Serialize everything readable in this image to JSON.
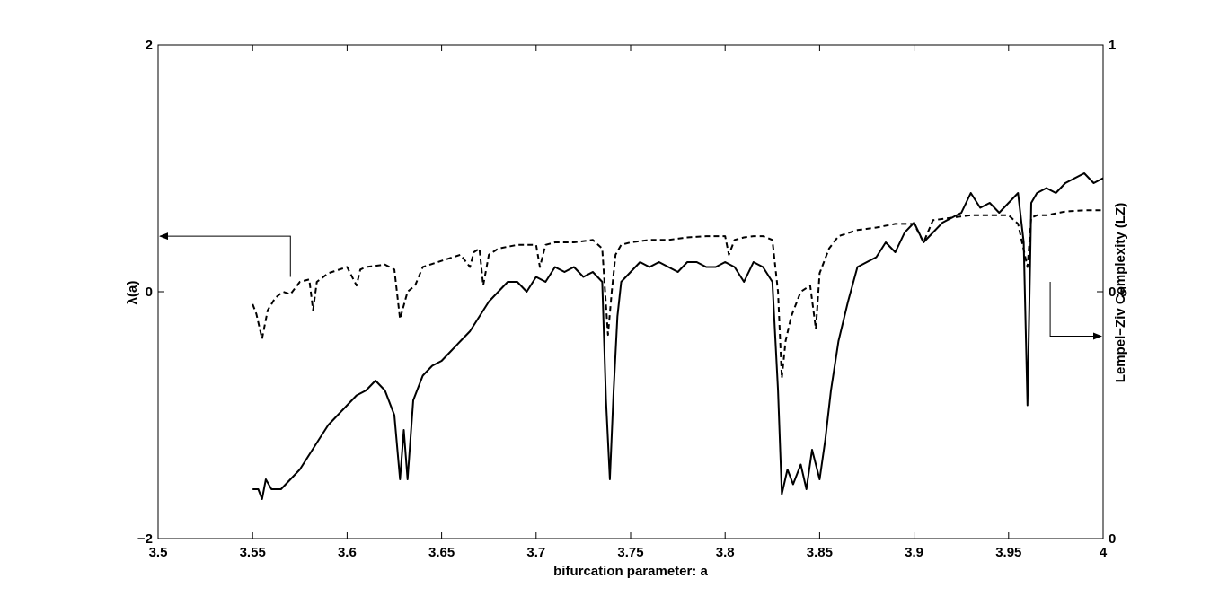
{
  "chart_data": {
    "type": "line",
    "xlabel": "bifurcation parameter: a",
    "ylabel_left": "λ(a)",
    "ylabel_right": "Lempel−Ziv Complexity (LZ)",
    "xlim": [
      3.5,
      4
    ],
    "ylim_left": [
      -2,
      2
    ],
    "ylim_right": [
      0,
      1
    ],
    "x_ticks": [
      3.5,
      3.55,
      3.6,
      3.65,
      3.7,
      3.75,
      3.8,
      3.85,
      3.9,
      3.95,
      4
    ],
    "x_tick_labels": [
      "3.5",
      "3.55",
      "3.6",
      "3.65",
      "3.7",
      "3.75",
      "3.8",
      "3.85",
      "3.9",
      "3.95",
      "4"
    ],
    "y_left_ticks": [
      -2,
      0,
      2
    ],
    "y_left_tick_labels": [
      "−2",
      "0",
      "2"
    ],
    "y_right_ticks": [
      0,
      0.5,
      1
    ],
    "y_right_tick_labels": [
      "0",
      "0.5",
      "1"
    ],
    "grid": false,
    "series": [
      {
        "axis": "left",
        "style": "dashed",
        "color": "#000000",
        "x": [
          3.55,
          3.552,
          3.555,
          3.558,
          3.562,
          3.566,
          3.57,
          3.575,
          3.58,
          3.582,
          3.584,
          3.59,
          3.6,
          3.605,
          3.607,
          3.61,
          3.62,
          3.625,
          3.628,
          3.632,
          3.636,
          3.64,
          3.65,
          3.66,
          3.665,
          3.667,
          3.67,
          3.672,
          3.675,
          3.68,
          3.69,
          3.7,
          3.702,
          3.705,
          3.71,
          3.72,
          3.73,
          3.735,
          3.738,
          3.74,
          3.742,
          3.745,
          3.75,
          3.76,
          3.77,
          3.78,
          3.79,
          3.8,
          3.802,
          3.805,
          3.81,
          3.815,
          3.82,
          3.825,
          3.828,
          3.83,
          3.832,
          3.835,
          3.84,
          3.845,
          3.848,
          3.85,
          3.855,
          3.86,
          3.87,
          3.88,
          3.89,
          3.9,
          3.905,
          3.91,
          3.92,
          3.93,
          3.94,
          3.95,
          3.955,
          3.96,
          3.962,
          3.965,
          3.97,
          3.98,
          3.99,
          4.0
        ],
        "values": [
          -0.1,
          -0.18,
          -0.38,
          -0.15,
          -0.05,
          0.0,
          -0.02,
          0.08,
          0.1,
          -0.15,
          0.08,
          0.15,
          0.2,
          0.05,
          0.18,
          0.2,
          0.22,
          0.18,
          -0.22,
          0.0,
          0.05,
          0.2,
          0.25,
          0.3,
          0.2,
          0.32,
          0.35,
          0.05,
          0.3,
          0.35,
          0.38,
          0.38,
          0.2,
          0.38,
          0.4,
          0.4,
          0.42,
          0.35,
          -0.35,
          0.0,
          0.3,
          0.38,
          0.4,
          0.42,
          0.42,
          0.44,
          0.45,
          0.45,
          0.3,
          0.42,
          0.44,
          0.45,
          0.45,
          0.42,
          0.0,
          -0.7,
          -0.4,
          -0.2,
          0.0,
          0.05,
          -0.3,
          0.15,
          0.35,
          0.45,
          0.5,
          0.52,
          0.55,
          0.55,
          0.4,
          0.58,
          0.6,
          0.62,
          0.62,
          0.62,
          0.55,
          0.2,
          0.6,
          0.62,
          0.62,
          0.65,
          0.66,
          0.66
        ]
      },
      {
        "axis": "right",
        "style": "solid",
        "color": "#000000",
        "x": [
          3.55,
          3.553,
          3.555,
          3.557,
          3.56,
          3.565,
          3.57,
          3.575,
          3.58,
          3.585,
          3.59,
          3.595,
          3.6,
          3.605,
          3.61,
          3.615,
          3.62,
          3.625,
          3.628,
          3.63,
          3.632,
          3.635,
          3.64,
          3.645,
          3.65,
          3.655,
          3.66,
          3.665,
          3.67,
          3.675,
          3.68,
          3.685,
          3.69,
          3.695,
          3.7,
          3.705,
          3.71,
          3.715,
          3.72,
          3.725,
          3.73,
          3.735,
          3.737,
          3.739,
          3.741,
          3.743,
          3.745,
          3.75,
          3.755,
          3.76,
          3.765,
          3.77,
          3.775,
          3.78,
          3.785,
          3.79,
          3.795,
          3.8,
          3.805,
          3.81,
          3.815,
          3.82,
          3.825,
          3.828,
          3.83,
          3.833,
          3.836,
          3.84,
          3.843,
          3.846,
          3.85,
          3.853,
          3.856,
          3.86,
          3.865,
          3.87,
          3.875,
          3.88,
          3.885,
          3.89,
          3.895,
          3.9,
          3.905,
          3.91,
          3.915,
          3.92,
          3.925,
          3.93,
          3.935,
          3.94,
          3.945,
          3.95,
          3.955,
          3.958,
          3.96,
          3.962,
          3.965,
          3.97,
          3.975,
          3.98,
          3.985,
          3.99,
          3.995,
          4.0
        ],
        "values": [
          0.1,
          0.1,
          0.08,
          0.12,
          0.1,
          0.1,
          0.12,
          0.14,
          0.17,
          0.2,
          0.23,
          0.25,
          0.27,
          0.29,
          0.3,
          0.32,
          0.3,
          0.25,
          0.12,
          0.22,
          0.12,
          0.28,
          0.33,
          0.35,
          0.36,
          0.38,
          0.4,
          0.42,
          0.45,
          0.48,
          0.5,
          0.52,
          0.52,
          0.5,
          0.53,
          0.52,
          0.55,
          0.54,
          0.55,
          0.53,
          0.54,
          0.52,
          0.28,
          0.12,
          0.3,
          0.45,
          0.52,
          0.54,
          0.56,
          0.55,
          0.56,
          0.55,
          0.54,
          0.56,
          0.56,
          0.55,
          0.55,
          0.56,
          0.55,
          0.52,
          0.56,
          0.55,
          0.52,
          0.3,
          0.09,
          0.14,
          0.11,
          0.15,
          0.1,
          0.18,
          0.12,
          0.2,
          0.3,
          0.4,
          0.48,
          0.55,
          0.56,
          0.57,
          0.6,
          0.58,
          0.62,
          0.64,
          0.6,
          0.62,
          0.64,
          0.65,
          0.66,
          0.7,
          0.67,
          0.68,
          0.66,
          0.68,
          0.7,
          0.6,
          0.27,
          0.68,
          0.7,
          0.71,
          0.7,
          0.72,
          0.73,
          0.74,
          0.72,
          0.73
        ]
      }
    ]
  }
}
